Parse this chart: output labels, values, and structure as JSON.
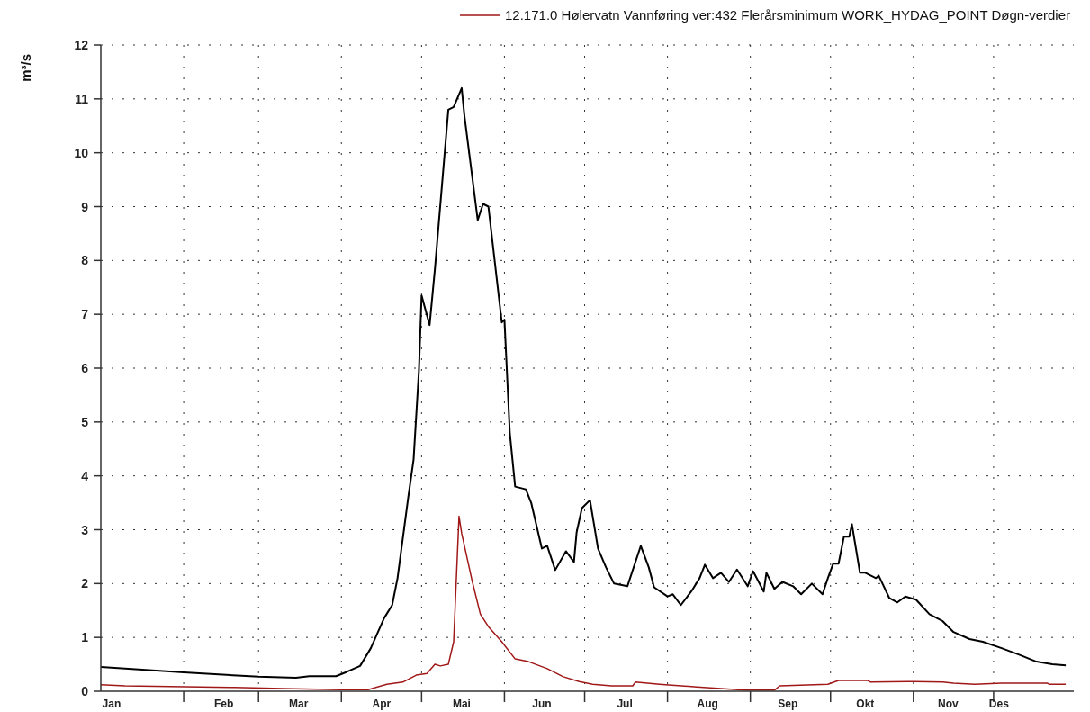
{
  "chart_data": {
    "type": "line",
    "ylabel": "m³/s",
    "xlim": [
      "--01-01",
      "--12-31"
    ],
    "xticks": [
      {
        "value": "--01-05",
        "label": "Jan"
      },
      {
        "value": "--02-01",
        "label": null
      },
      {
        "value": "--02-16",
        "label": "Feb"
      },
      {
        "value": "--03-01",
        "label": null
      },
      {
        "value": "--03-16",
        "label": "Mar"
      },
      {
        "value": "--04-01",
        "label": null
      },
      {
        "value": "--04-16",
        "label": "Apr"
      },
      {
        "value": "--05-01",
        "label": null
      },
      {
        "value": "--05-16",
        "label": "Mai"
      },
      {
        "value": "--06-01",
        "label": null
      },
      {
        "value": "--06-15",
        "label": "Jun"
      },
      {
        "value": "--07-01",
        "label": null
      },
      {
        "value": "--07-16",
        "label": "Jul"
      },
      {
        "value": "--08-01",
        "label": null
      },
      {
        "value": "--08-16",
        "label": "Aug"
      },
      {
        "value": "--09-01",
        "label": null
      },
      {
        "value": "--09-15",
        "label": "Sep"
      },
      {
        "value": "--10-01",
        "label": null
      },
      {
        "value": "--10-14",
        "label": "Okt"
      },
      {
        "value": "--11-01",
        "label": null
      },
      {
        "value": "--11-14",
        "label": "Nov"
      },
      {
        "value": "--12-01",
        "label": null
      },
      {
        "value": "--12-03",
        "label": "Des"
      }
    ],
    "ylim": [
      0,
      12
    ],
    "yticks": [
      0,
      1,
      2,
      3,
      4,
      5,
      6,
      7,
      8,
      9,
      10,
      11,
      12
    ],
    "grid": true,
    "legend": "top right",
    "series": [
      {
        "color": "#000000",
        "x": [
          "--01-01",
          "--02-01",
          "--03-01",
          "--03-15",
          "--03-20",
          "--03-30",
          "--04-03",
          "--04-08",
          "--04-12",
          "--04-17",
          "--04-20",
          "--04-22",
          "--04-26",
          "--04-28",
          "--04-30",
          "--05-01",
          "--05-04",
          "--05-06",
          "--05-11",
          "--05-13",
          "--05-16",
          "--05-17",
          "--05-22",
          "--05-24",
          "--05-26",
          "--05-31",
          "--06-01",
          "--06-03",
          "--06-05",
          "--06-09",
          "--06-11",
          "--06-15",
          "--06-17",
          "--06-20",
          "--06-24",
          "--06-27",
          "--06-28",
          "--06-30",
          "--07-03",
          "--07-06",
          "--07-09",
          "--07-12",
          "--07-17",
          "--07-22",
          "--07-25",
          "--07-27",
          "--08-01",
          "--08-03",
          "--08-06",
          "--08-10",
          "--08-13",
          "--08-15",
          "--08-18",
          "--08-21",
          "--08-24",
          "--08-27",
          "--08-31",
          "--09-02",
          "--09-06",
          "--09-07",
          "--09-10",
          "--09-13",
          "--09-17",
          "--09-20",
          "--09-24",
          "--09-28",
          "--09-30",
          "--10-02",
          "--10-04",
          "--10-06",
          "--10-08",
          "--10-09",
          "--10-12",
          "--10-14",
          "--10-18",
          "--10-19",
          "--10-23",
          "--10-26",
          "--10-29",
          "--11-02",
          "--11-07",
          "--11-12",
          "--11-16",
          "--11-22",
          "--11-27",
          "--12-04",
          "--12-11",
          "--12-17",
          "--12-23",
          "--12-28"
        ],
        "values": [
          0.45,
          0.35,
          0.27,
          0.25,
          0.28,
          0.28,
          0.36,
          0.47,
          0.8,
          1.36,
          1.6,
          2.1,
          3.6,
          4.3,
          5.95,
          7.35,
          6.8,
          7.85,
          10.8,
          10.85,
          11.2,
          10.7,
          8.75,
          9.05,
          9.0,
          6.85,
          6.9,
          4.8,
          3.8,
          3.75,
          3.5,
          2.65,
          2.7,
          2.25,
          2.6,
          2.4,
          2.95,
          3.4,
          3.55,
          2.65,
          2.3,
          2.0,
          1.95,
          2.7,
          2.3,
          1.93,
          1.76,
          1.8,
          1.6,
          1.86,
          2.1,
          2.35,
          2.1,
          2.2,
          2.03,
          2.26,
          1.95,
          2.23,
          1.85,
          2.2,
          1.9,
          2.03,
          1.95,
          1.8,
          2.0,
          1.8,
          2.1,
          2.37,
          2.37,
          2.87,
          2.87,
          3.1,
          2.2,
          2.2,
          2.1,
          2.15,
          1.73,
          1.65,
          1.76,
          1.7,
          1.43,
          1.3,
          1.1,
          0.97,
          0.92,
          0.8,
          0.67,
          0.55,
          0.5,
          0.48
        ]
      },
      {
        "name": "12.171.0 Hølervatn Vannføring ver:432 Flerårsminimum WORK_HYDAG_POINT Døgn-verdier",
        "color": "#a01818",
        "x": [
          "--01-01",
          "--01-10",
          "--02-20",
          "--03-10",
          "--04-01",
          "--04-11",
          "--04-18",
          "--04-24",
          "--04-29",
          "--05-03",
          "--05-06",
          "--05-08",
          "--05-11",
          "--05-13",
          "--05-15",
          "--05-16",
          "--05-20",
          "--05-23",
          "--05-26",
          "--05-31",
          "--06-05",
          "--06-10",
          "--06-17",
          "--06-23",
          "--06-29",
          "--07-04",
          "--07-11",
          "--07-19",
          "--07-20",
          "--07-29",
          "--08-12",
          "--08-30",
          "--09-10",
          "--09-12",
          "--09-30",
          "--10-04",
          "--10-15",
          "--10-16",
          "--10-30",
          "--11-12",
          "--11-16",
          "--11-24",
          "--12-04",
          "--12-21",
          "--12-22",
          "--12-28"
        ],
        "values": [
          0.12,
          0.1,
          0.07,
          0.05,
          0.03,
          0.03,
          0.13,
          0.17,
          0.3,
          0.33,
          0.5,
          0.47,
          0.5,
          0.92,
          3.25,
          2.93,
          2.03,
          1.43,
          1.2,
          0.92,
          0.6,
          0.55,
          0.42,
          0.27,
          0.18,
          0.13,
          0.1,
          0.1,
          0.17,
          0.13,
          0.08,
          0.02,
          0.02,
          0.1,
          0.13,
          0.2,
          0.2,
          0.17,
          0.18,
          0.17,
          0.15,
          0.13,
          0.15,
          0.15,
          0.13,
          0.13
        ]
      }
    ]
  }
}
